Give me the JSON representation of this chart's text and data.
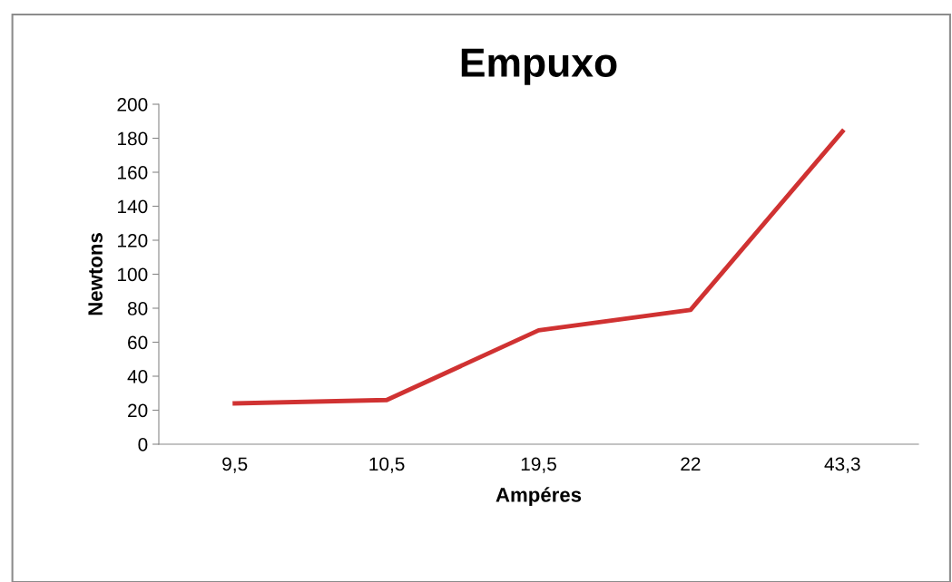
{
  "chart_data": {
    "type": "line",
    "title": "Empuxo",
    "xlabel": "Ampéres",
    "ylabel": "Newtons",
    "categories": [
      "9,5",
      "10,5",
      "19,5",
      "22",
      "43,3"
    ],
    "series": [
      {
        "color": "#d03232",
        "values": [
          24,
          26,
          67,
          79,
          184
        ]
      }
    ],
    "ylim": [
      0,
      200
    ],
    "yticks": [
      0,
      20,
      40,
      60,
      80,
      100,
      120,
      140,
      160,
      180,
      200
    ],
    "grid": false,
    "legend": false,
    "marker": "none",
    "line_style": "solid"
  }
}
